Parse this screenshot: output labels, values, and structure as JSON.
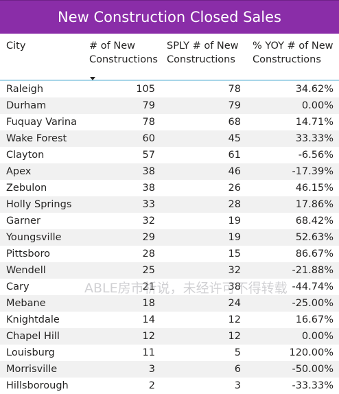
{
  "title": "New Construction Closed Sales",
  "columns": {
    "city": "City",
    "new": [
      "# of New",
      "Constructions"
    ],
    "sply": [
      "SPLY # of New",
      "Constructions"
    ],
    "yoy": [
      "% YOY # of New",
      "Constructions"
    ]
  },
  "rows": [
    {
      "city": "Raleigh",
      "new": "105",
      "sply": "78",
      "yoy": "34.62%"
    },
    {
      "city": "Durham",
      "new": "79",
      "sply": "79",
      "yoy": "0.00%"
    },
    {
      "city": "Fuquay Varina",
      "new": "78",
      "sply": "68",
      "yoy": "14.71%"
    },
    {
      "city": "Wake Forest",
      "new": "60",
      "sply": "45",
      "yoy": "33.33%"
    },
    {
      "city": "Clayton",
      "new": "57",
      "sply": "61",
      "yoy": "-6.56%"
    },
    {
      "city": "Apex",
      "new": "38",
      "sply": "46",
      "yoy": "-17.39%"
    },
    {
      "city": "Zebulon",
      "new": "38",
      "sply": "26",
      "yoy": "46.15%"
    },
    {
      "city": "Holly Springs",
      "new": "33",
      "sply": "28",
      "yoy": "17.86%"
    },
    {
      "city": "Garner",
      "new": "32",
      "sply": "19",
      "yoy": "68.42%"
    },
    {
      "city": "Youngsville",
      "new": "29",
      "sply": "19",
      "yoy": "52.63%"
    },
    {
      "city": "Pittsboro",
      "new": "28",
      "sply": "15",
      "yoy": "86.67%"
    },
    {
      "city": "Wendell",
      "new": "25",
      "sply": "32",
      "yoy": "-21.88%"
    },
    {
      "city": "Cary",
      "new": "21",
      "sply": "38",
      "yoy": "-44.74%"
    },
    {
      "city": "Mebane",
      "new": "18",
      "sply": "24",
      "yoy": "-25.00%"
    },
    {
      "city": "Knightdale",
      "new": "14",
      "sply": "12",
      "yoy": "16.67%"
    },
    {
      "city": "Chapel Hill",
      "new": "12",
      "sply": "12",
      "yoy": "0.00%"
    },
    {
      "city": "Louisburg",
      "new": "11",
      "sply": "5",
      "yoy": "120.00%"
    },
    {
      "city": "Morrisville",
      "new": "3",
      "sply": "6",
      "yoy": "-50.00%"
    },
    {
      "city": "Hillsborough",
      "new": "2",
      "sply": "3",
      "yoy": "-33.33%"
    }
  ],
  "watermark": "ABLE房市析说，未经许可不得转载",
  "icons": {
    "sort": "sort-descending-icon"
  },
  "colors": {
    "title_bg": "#8a2da8",
    "header_rule": "#a8d6e8",
    "row_alt": "#f1f1f1"
  }
}
